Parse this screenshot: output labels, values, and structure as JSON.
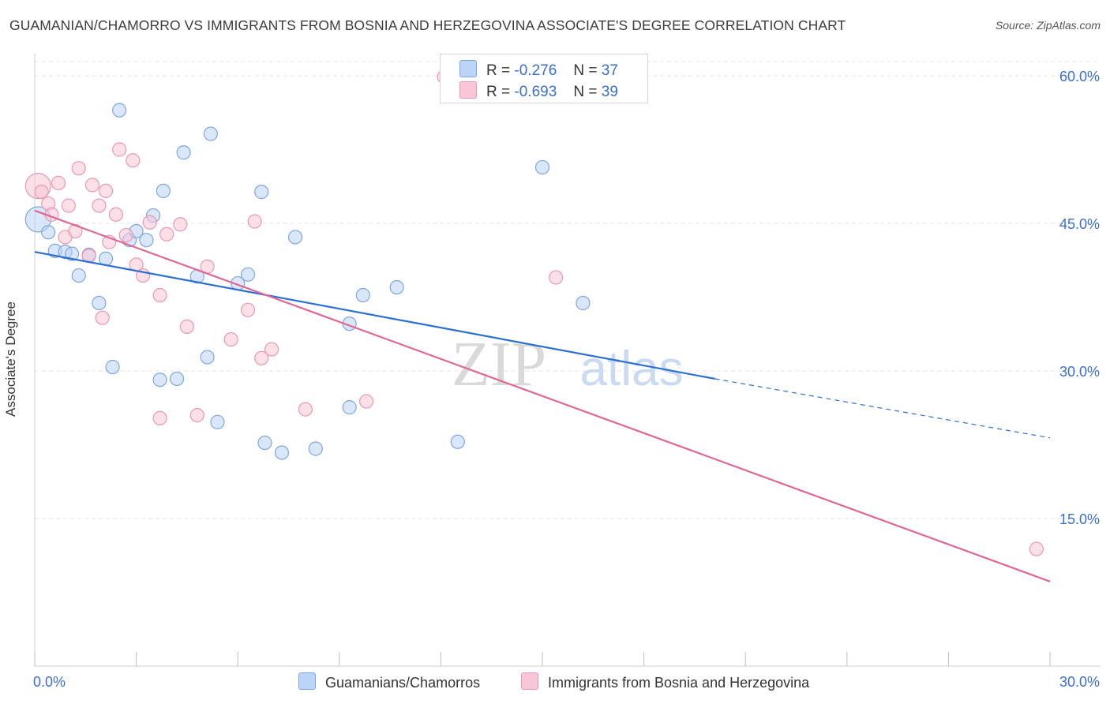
{
  "title": "GUAMANIAN/CHAMORRO VS IMMIGRANTS FROM BOSNIA AND HERZEGOVINA ASSOCIATE'S DEGREE CORRELATION CHART",
  "source": "Source: ZipAtlas.com",
  "legend": {
    "r_label": "R =",
    "n_label": "N =",
    "rows": [
      {
        "r": "-0.276",
        "n": "37"
      },
      {
        "r": "-0.693",
        "n": "39"
      }
    ]
  },
  "colors": {
    "blue_fill": "#bcd4f5",
    "blue_stroke": "#7ea6e0",
    "blue_line": "#2b6fd4",
    "pink_fill": "#f8c6d6",
    "pink_stroke": "#ec97b2",
    "pink_line": "#e06791",
    "axis_label": "#3a6fd0",
    "grid": "#e4e4e4"
  },
  "chart_data": {
    "type": "scatter",
    "xlabel": "",
    "ylabel": "Associate's Degree",
    "xlim": [
      0,
      30
    ],
    "ylim": [
      0,
      60
    ],
    "x_tick_labels": [
      "0.0%",
      "30.0%"
    ],
    "y_ticks": [
      15,
      30,
      45,
      60
    ],
    "y_tick_labels": [
      "15.0%",
      "30.0%",
      "45.0%",
      "60.0%"
    ],
    "grid": true,
    "legend_position": "top-center",
    "watermark": "ZIPatlas",
    "series": [
      {
        "name": "Guamanians/Chamorros",
        "color": "blue",
        "trend": {
          "x0": 0,
          "y0": 42.1,
          "x1": 20.1,
          "y1": 29.2,
          "dashed_to_x": 30,
          "dashed_to_y": 23.2
        },
        "points": [
          {
            "x": 0.1,
            "y": 45.4,
            "big": true
          },
          {
            "x": 0.4,
            "y": 44.1
          },
          {
            "x": 0.6,
            "y": 42.2
          },
          {
            "x": 0.9,
            "y": 42.1
          },
          {
            "x": 1.1,
            "y": 41.9
          },
          {
            "x": 1.3,
            "y": 39.7
          },
          {
            "x": 1.6,
            "y": 41.8
          },
          {
            "x": 1.9,
            "y": 36.9
          },
          {
            "x": 2.1,
            "y": 41.4
          },
          {
            "x": 2.3,
            "y": 30.4
          },
          {
            "x": 2.5,
            "y": 56.5
          },
          {
            "x": 2.8,
            "y": 43.3
          },
          {
            "x": 3.0,
            "y": 44.2
          },
          {
            "x": 3.3,
            "y": 43.3
          },
          {
            "x": 3.5,
            "y": 45.8
          },
          {
            "x": 3.8,
            "y": 48.3
          },
          {
            "x": 3.7,
            "y": 29.1
          },
          {
            "x": 4.2,
            "y": 29.2
          },
          {
            "x": 4.4,
            "y": 52.2
          },
          {
            "x": 4.8,
            "y": 39.6
          },
          {
            "x": 5.1,
            "y": 31.4
          },
          {
            "x": 5.2,
            "y": 54.1
          },
          {
            "x": 5.4,
            "y": 24.8
          },
          {
            "x": 6.0,
            "y": 38.9
          },
          {
            "x": 6.3,
            "y": 39.8
          },
          {
            "x": 6.7,
            "y": 48.2
          },
          {
            "x": 6.8,
            "y": 22.7
          },
          {
            "x": 7.3,
            "y": 21.7
          },
          {
            "x": 7.7,
            "y": 43.6
          },
          {
            "x": 8.3,
            "y": 22.1
          },
          {
            "x": 9.3,
            "y": 26.3
          },
          {
            "x": 9.3,
            "y": 34.8
          },
          {
            "x": 9.7,
            "y": 37.7
          },
          {
            "x": 10.7,
            "y": 38.5
          },
          {
            "x": 12.5,
            "y": 22.8
          },
          {
            "x": 15.0,
            "y": 50.7
          },
          {
            "x": 16.2,
            "y": 36.9
          }
        ]
      },
      {
        "name": "Immigrants from Bosnia and Herzegovina",
        "color": "pink",
        "trend": {
          "x0": 0,
          "y0": 46.3,
          "x1": 30,
          "y1": 8.6
        },
        "points": [
          {
            "x": 0.1,
            "y": 48.8,
            "big": true
          },
          {
            "x": 0.2,
            "y": 48.2
          },
          {
            "x": 0.4,
            "y": 47.0
          },
          {
            "x": 0.5,
            "y": 45.9
          },
          {
            "x": 0.7,
            "y": 49.1
          },
          {
            "x": 0.9,
            "y": 43.6
          },
          {
            "x": 1.0,
            "y": 46.8
          },
          {
            "x": 1.2,
            "y": 44.2
          },
          {
            "x": 1.3,
            "y": 50.6
          },
          {
            "x": 1.6,
            "y": 41.7
          },
          {
            "x": 1.7,
            "y": 48.9
          },
          {
            "x": 1.9,
            "y": 46.8
          },
          {
            "x": 2.0,
            "y": 35.4
          },
          {
            "x": 2.1,
            "y": 48.3
          },
          {
            "x": 2.2,
            "y": 43.1
          },
          {
            "x": 2.4,
            "y": 45.9
          },
          {
            "x": 2.5,
            "y": 52.5
          },
          {
            "x": 2.7,
            "y": 43.8
          },
          {
            "x": 2.9,
            "y": 51.4
          },
          {
            "x": 3.0,
            "y": 40.8
          },
          {
            "x": 3.2,
            "y": 39.7
          },
          {
            "x": 3.4,
            "y": 45.1
          },
          {
            "x": 3.7,
            "y": 37.7
          },
          {
            "x": 3.7,
            "y": 25.2
          },
          {
            "x": 3.9,
            "y": 43.9
          },
          {
            "x": 4.3,
            "y": 44.9
          },
          {
            "x": 4.5,
            "y": 34.5
          },
          {
            "x": 4.8,
            "y": 25.5
          },
          {
            "x": 5.1,
            "y": 40.6
          },
          {
            "x": 5.8,
            "y": 33.2
          },
          {
            "x": 6.3,
            "y": 36.2
          },
          {
            "x": 6.5,
            "y": 45.2
          },
          {
            "x": 6.7,
            "y": 31.3
          },
          {
            "x": 7.0,
            "y": 32.2
          },
          {
            "x": 8.0,
            "y": 26.1
          },
          {
            "x": 9.8,
            "y": 26.9
          },
          {
            "x": 12.1,
            "y": 59.9
          },
          {
            "x": 15.4,
            "y": 39.5
          },
          {
            "x": 29.6,
            "y": 11.9
          }
        ]
      }
    ]
  },
  "bottom_legend": [
    "Guamanians/Chamorros",
    "Immigrants from Bosnia and Herzegovina"
  ]
}
